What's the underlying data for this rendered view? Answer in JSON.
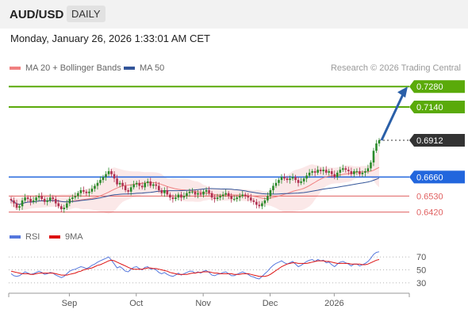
{
  "header": {
    "symbol": "AUD/USD",
    "period": "DAILY",
    "datetime": "Monday, January 26, 2026 1:33:01 AM CET",
    "copyright": "Research © 2026 Trading Central"
  },
  "legend": {
    "ma20": "MA 20 + Bollinger Bands",
    "ma50": "MA 50",
    "rsi": "RSI",
    "ma9": "9MA"
  },
  "colors": {
    "green_level": "#5aaa0a",
    "blue_level": "#2266dd",
    "red_level": "#e06060",
    "candle_up": "#2a8a2a",
    "candle_down": "#b03050",
    "ma20": "#f08080",
    "ma50": "#335599",
    "rsi": "#5577dd",
    "rsi_ma": "#dd1111",
    "arrow": "#2a5fa8"
  },
  "chart_data": [
    {
      "type": "candlestick",
      "x_labels": [
        "Sep",
        "Oct",
        "Nov",
        "Dec",
        "2026"
      ],
      "ylim": [
        0.638,
        0.733
      ],
      "levels": [
        {
          "label": "0.7280",
          "value": 0.728,
          "kind": "target"
        },
        {
          "label": "0.7140",
          "value": 0.714,
          "kind": "target"
        },
        {
          "label": "0.6912",
          "value": 0.6912,
          "kind": "last"
        },
        {
          "label": "0.6660",
          "value": 0.666,
          "kind": "pivot"
        },
        {
          "label": "0.6530",
          "value": 0.653,
          "kind": "support"
        },
        {
          "label": "0.6420",
          "value": 0.642,
          "kind": "support"
        }
      ],
      "close": [
        0.65,
        0.648,
        0.645,
        0.646,
        0.65,
        0.652,
        0.651,
        0.649,
        0.65,
        0.652,
        0.653,
        0.651,
        0.649,
        0.65,
        0.652,
        0.651,
        0.648,
        0.646,
        0.644,
        0.645,
        0.648,
        0.651,
        0.652,
        0.653,
        0.655,
        0.657,
        0.656,
        0.655,
        0.656,
        0.658,
        0.66,
        0.662,
        0.664,
        0.666,
        0.668,
        0.67,
        0.668,
        0.665,
        0.661,
        0.662,
        0.66,
        0.657,
        0.656,
        0.659,
        0.661,
        0.662,
        0.66,
        0.659,
        0.662,
        0.663,
        0.66,
        0.661,
        0.66,
        0.657,
        0.655,
        0.657,
        0.654,
        0.652,
        0.651,
        0.652,
        0.654,
        0.652,
        0.653,
        0.655,
        0.656,
        0.656,
        0.654,
        0.655,
        0.654,
        0.656,
        0.657,
        0.655,
        0.652,
        0.651,
        0.652,
        0.653,
        0.654,
        0.655,
        0.653,
        0.651,
        0.651,
        0.652,
        0.653,
        0.654,
        0.653,
        0.652,
        0.65,
        0.649,
        0.647,
        0.646,
        0.648,
        0.65,
        0.653,
        0.657,
        0.66,
        0.662,
        0.664,
        0.666,
        0.665,
        0.664,
        0.665,
        0.666,
        0.664,
        0.662,
        0.663,
        0.665,
        0.667,
        0.669,
        0.67,
        0.669,
        0.671,
        0.67,
        0.671,
        0.669,
        0.67,
        0.668,
        0.666,
        0.669,
        0.671,
        0.672,
        0.671,
        0.67,
        0.668,
        0.67,
        0.67,
        0.668,
        0.669,
        0.67,
        0.672,
        0.676,
        0.684,
        0.689,
        0.6912
      ]
    },
    {
      "type": "line",
      "title": "RSI",
      "series": [
        {
          "name": "RSI",
          "values": [
            44,
            41,
            40,
            41,
            44,
            47,
            45,
            43,
            44,
            46,
            48,
            46,
            43,
            44,
            46,
            45,
            42,
            40,
            38,
            40,
            44,
            48,
            50,
            51,
            53,
            55,
            54,
            52,
            54,
            57,
            59,
            62,
            64,
            66,
            68,
            70,
            65,
            59,
            53,
            55,
            52,
            48,
            47,
            51,
            54,
            55,
            52,
            50,
            54,
            55,
            51,
            52,
            50,
            46,
            44,
            46,
            43,
            41,
            40,
            42,
            45,
            42,
            44,
            46,
            48,
            48,
            45,
            47,
            45,
            48,
            49,
            46,
            42,
            41,
            43,
            44,
            46,
            47,
            44,
            41,
            41,
            43,
            45,
            47,
            45,
            43,
            40,
            39,
            37,
            36,
            40,
            44,
            48,
            53,
            57,
            60,
            62,
            64,
            61,
            59,
            61,
            63,
            59,
            55,
            57,
            60,
            63,
            65,
            66,
            63,
            66,
            64,
            65,
            61,
            62,
            58,
            55,
            59,
            62,
            63,
            61,
            59,
            56,
            59,
            59,
            56,
            58,
            60,
            63,
            68,
            74,
            77,
            78
          ]
        },
        {
          "name": "9MA",
          "values": [
            48,
            47,
            46,
            45,
            44,
            44,
            44,
            43,
            43,
            44,
            45,
            45,
            45,
            45,
            45,
            45,
            44,
            43,
            42,
            42,
            42,
            43,
            44,
            45,
            47,
            48,
            50,
            51,
            52,
            53,
            55,
            57,
            58,
            60,
            62,
            64,
            65,
            64,
            62,
            60,
            58,
            56,
            54,
            52,
            51,
            51,
            51,
            51,
            52,
            53,
            53,
            52,
            52,
            51,
            50,
            49,
            48,
            46,
            45,
            44,
            43,
            43,
            43,
            43,
            44,
            45,
            45,
            46,
            46,
            47,
            47,
            47,
            46,
            45,
            45,
            44,
            44,
            44,
            44,
            44,
            43,
            43,
            43,
            44,
            44,
            44,
            43,
            42,
            41,
            40,
            40,
            40,
            41,
            43,
            46,
            49,
            52,
            55,
            57,
            59,
            60,
            61,
            61,
            60,
            60,
            60,
            60,
            61,
            62,
            63,
            64,
            64,
            64,
            63,
            63,
            62,
            61,
            60,
            60,
            60,
            60,
            60,
            59,
            59,
            59,
            59,
            58,
            58,
            59,
            61,
            63,
            65,
            66
          ]
        }
      ],
      "levels": [
        70,
        50,
        30
      ],
      "ylim": [
        20,
        85
      ]
    }
  ]
}
